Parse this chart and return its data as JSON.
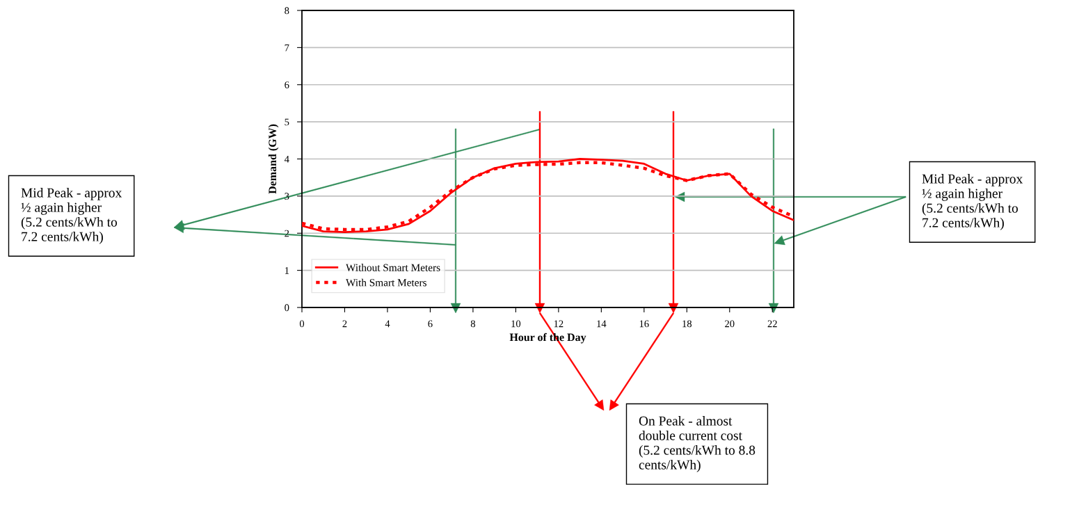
{
  "chart_data": {
    "type": "line",
    "xlabel": "Hour of the Day",
    "ylabel": "Demand (GW)",
    "x": [
      0,
      1,
      2,
      3,
      4,
      5,
      6,
      7,
      8,
      9,
      10,
      11,
      12,
      13,
      14,
      15,
      16,
      17,
      18,
      19,
      20,
      21,
      22,
      23
    ],
    "series": [
      {
        "name": "Without Smart Meters",
        "color": "#ff0000",
        "line_style": "solid",
        "values": [
          2.2,
          2.05,
          2.03,
          2.05,
          2.1,
          2.25,
          2.6,
          3.1,
          3.5,
          3.75,
          3.87,
          3.92,
          3.93,
          4.0,
          3.98,
          3.95,
          3.87,
          3.6,
          3.42,
          3.55,
          3.6,
          3.0,
          2.6,
          2.35
        ]
      },
      {
        "name": "With Smart Meters",
        "color": "#ff0000",
        "line_style": "dotted",
        "values": [
          2.27,
          2.12,
          2.1,
          2.1,
          2.17,
          2.32,
          2.7,
          3.15,
          3.5,
          3.73,
          3.83,
          3.85,
          3.86,
          3.9,
          3.9,
          3.83,
          3.75,
          3.55,
          3.42,
          3.55,
          3.6,
          3.05,
          2.7,
          2.45
        ]
      }
    ],
    "xlim": [
      0,
      23
    ],
    "xticks": [
      0,
      2,
      4,
      6,
      8,
      10,
      12,
      14,
      16,
      18,
      20,
      22
    ],
    "ylim": [
      0,
      8
    ],
    "yticks": [
      0,
      1,
      2,
      3,
      4,
      5,
      6,
      7,
      8
    ],
    "grid": "y",
    "legend": "bottom left",
    "marker": "none",
    "annotations": [
      "Mid Peak - approx\n½ again higher\n(5.2 cents/kWh to\n7.2 cents/kWh)",
      "Mid Peak - approx\n½ again higher\n(5.2 cents/kWh to\n7.2 cents/kWh)",
      "On Peak - almost\ndouble current cost\n(5.2 cents/kWh to 8.8\ncents/kWh)"
    ]
  }
}
